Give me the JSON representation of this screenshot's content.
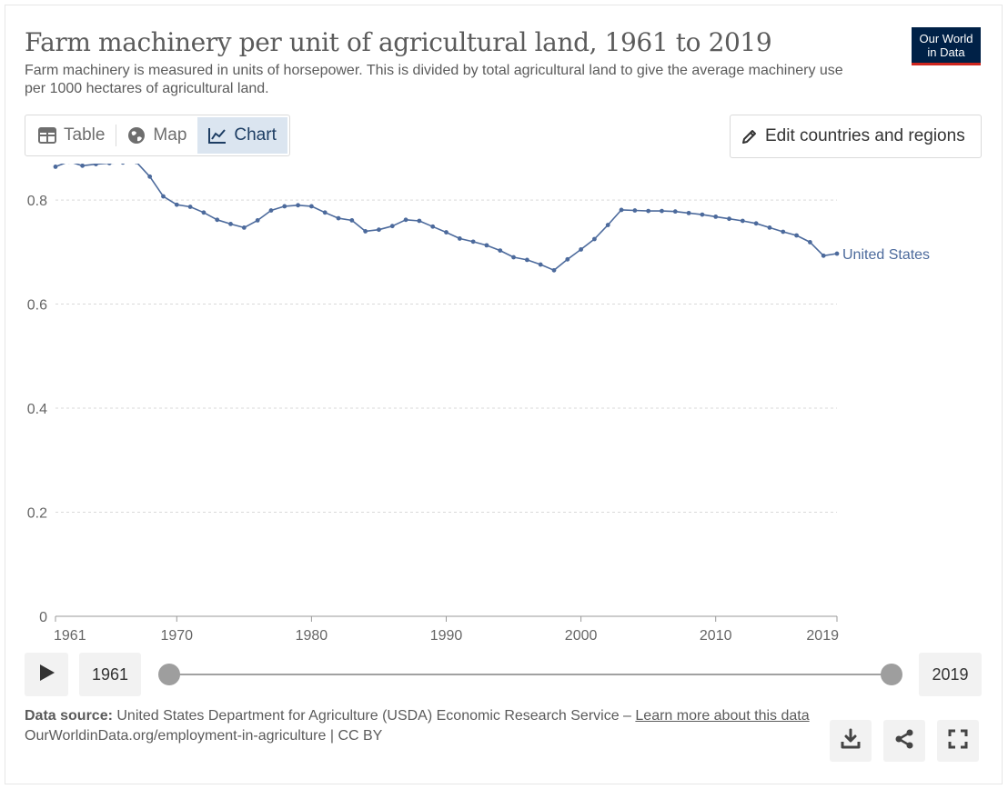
{
  "header": {
    "title": "Farm machinery per unit of agricultural land, 1961 to 2019",
    "subtitle": "Farm machinery is measured in units of horsepower. This is divided by total agricultural land to give the average machinery use per 1000 hectares of agricultural land.",
    "logo_line1": "Our World",
    "logo_line2": "in Data"
  },
  "tabs": [
    {
      "label": "Table",
      "icon": "table-icon"
    },
    {
      "label": "Map",
      "icon": "globe-icon"
    },
    {
      "label": "Chart",
      "icon": "line-chart-icon",
      "active": true
    }
  ],
  "edit_button": {
    "label": "Edit countries and regions",
    "icon": "pencil-icon"
  },
  "chart_data": {
    "type": "line",
    "title": "Farm machinery per unit of agricultural land, 1961 to 2019",
    "xlabel": "",
    "ylabel": "",
    "xlim": [
      1961,
      2019
    ],
    "ylim": [
      0,
      0.87
    ],
    "y_ticks": [
      0,
      0.2,
      0.4,
      0.6,
      0.8
    ],
    "y_tick_labels": [
      "0",
      "0.2",
      "0.4",
      "0.6",
      "0.8"
    ],
    "x_ticks": [
      1961,
      1970,
      1980,
      1990,
      2000,
      2010,
      2019
    ],
    "x_tick_labels": [
      "1961",
      "1970",
      "1980",
      "1990",
      "2000",
      "2010",
      "2019"
    ],
    "grid": "horizontal dotted",
    "line_color": "#4c6a9c",
    "series": [
      {
        "name": "United States",
        "x": [
          1961,
          1962,
          1963,
          1964,
          1965,
          1966,
          1967,
          1968,
          1969,
          1970,
          1971,
          1972,
          1973,
          1974,
          1975,
          1976,
          1977,
          1978,
          1979,
          1980,
          1981,
          1982,
          1983,
          1984,
          1985,
          1986,
          1987,
          1988,
          1989,
          1990,
          1991,
          1992,
          1993,
          1994,
          1995,
          1996,
          1997,
          1998,
          1999,
          2000,
          2001,
          2002,
          2003,
          2004,
          2005,
          2006,
          2007,
          2008,
          2009,
          2010,
          2011,
          2012,
          2013,
          2014,
          2015,
          2016,
          2017,
          2018,
          2019
        ],
        "values": [
          0.864,
          0.874,
          0.866,
          0.869,
          0.871,
          0.872,
          0.873,
          0.845,
          0.807,
          0.791,
          0.787,
          0.776,
          0.762,
          0.754,
          0.747,
          0.761,
          0.78,
          0.788,
          0.79,
          0.788,
          0.776,
          0.765,
          0.761,
          0.74,
          0.743,
          0.75,
          0.762,
          0.76,
          0.749,
          0.738,
          0.726,
          0.72,
          0.713,
          0.703,
          0.69,
          0.685,
          0.676,
          0.665,
          0.686,
          0.705,
          0.725,
          0.752,
          0.781,
          0.78,
          0.779,
          0.779,
          0.778,
          0.775,
          0.772,
          0.768,
          0.764,
          0.76,
          0.755,
          0.747,
          0.739,
          0.732,
          0.719,
          0.693,
          0.697
        ]
      }
    ]
  },
  "timeline": {
    "start_year": "1961",
    "end_year": "2019"
  },
  "footer": {
    "source_label": "Data source:",
    "source_text": "United States Department for Agriculture (USDA) Economic Research Service –",
    "learn_more": "Learn more about this data",
    "url_line": "OurWorldinData.org/employment-in-agriculture | CC BY"
  },
  "actions": [
    {
      "icon": "download-icon"
    },
    {
      "icon": "share-icon"
    },
    {
      "icon": "fullscreen-icon"
    }
  ]
}
